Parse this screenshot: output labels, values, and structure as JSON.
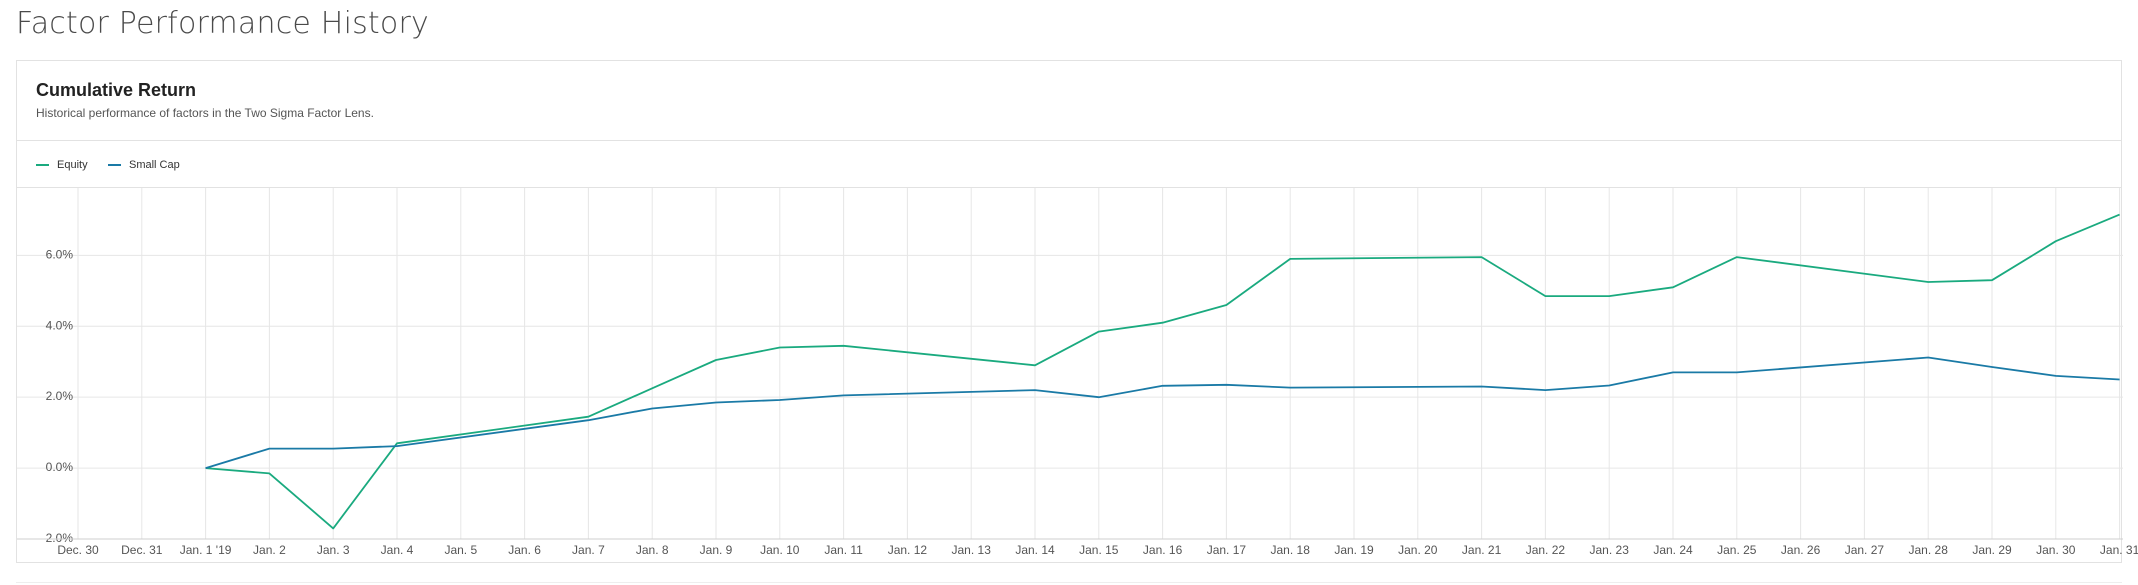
{
  "page": {
    "title": "Factor Performance History"
  },
  "card": {
    "title": "Cumulative Return",
    "subtitle": "Historical performance of factors in the Two Sigma Factor Lens."
  },
  "colors": {
    "equity": "#1aaa7f",
    "small_cap": "#1a7aa6",
    "grid": "#e6e6e6",
    "axis_text": "#555555"
  },
  "legend": [
    {
      "label": "Equity",
      "color": "#1aaa7f"
    },
    {
      "label": "Small Cap",
      "color": "#1a7aa6"
    }
  ],
  "chart_data": {
    "type": "line",
    "title": "Cumulative Return",
    "xlabel": "",
    "ylabel": "",
    "categories": [
      "Dec. 30",
      "Dec. 31",
      "Jan. 1 '19",
      "Jan. 2",
      "Jan. 3",
      "Jan. 4",
      "Jan. 5",
      "Jan. 6",
      "Jan. 7",
      "Jan. 8",
      "Jan. 9",
      "Jan. 10",
      "Jan. 11",
      "Jan. 12",
      "Jan. 13",
      "Jan. 14",
      "Jan. 15",
      "Jan. 16",
      "Jan. 17",
      "Jan. 18",
      "Jan. 19",
      "Jan. 20",
      "Jan. 21",
      "Jan. 22",
      "Jan. 23",
      "Jan. 24",
      "Jan. 25",
      "Jan. 26",
      "Jan. 27",
      "Jan. 28",
      "Jan. 29",
      "Jan. 30",
      "Jan. 31"
    ],
    "yticks": [
      -2.0,
      0.0,
      2.0,
      4.0,
      6.0
    ],
    "ytick_labels": [
      "-2.0%",
      "0.0%",
      "2.0%",
      "4.0%",
      "6.0%"
    ],
    "ylim": [
      -2.0,
      7.9
    ],
    "grid": true,
    "legend_position": "top-left",
    "series": [
      {
        "name": "Equity",
        "color": "#1aaa7f",
        "points": [
          [
            "Jan. 1 '19",
            0.0
          ],
          [
            "Jan. 2",
            -0.15
          ],
          [
            "Jan. 3",
            -1.7
          ],
          [
            "Jan. 4",
            0.7
          ],
          [
            "Jan. 7",
            1.45
          ],
          [
            "Jan. 8",
            2.25
          ],
          [
            "Jan. 9",
            3.05
          ],
          [
            "Jan. 10",
            3.4
          ],
          [
            "Jan. 11",
            3.45
          ],
          [
            "Jan. 14",
            2.9
          ],
          [
            "Jan. 15",
            3.85
          ],
          [
            "Jan. 16",
            4.1
          ],
          [
            "Jan. 17",
            4.6
          ],
          [
            "Jan. 18",
            5.9
          ],
          [
            "Jan. 21",
            5.95
          ],
          [
            "Jan. 22",
            4.85
          ],
          [
            "Jan. 23",
            4.85
          ],
          [
            "Jan. 24",
            5.1
          ],
          [
            "Jan. 25",
            5.95
          ],
          [
            "Jan. 28",
            5.25
          ],
          [
            "Jan. 29",
            5.3
          ],
          [
            "Jan. 30",
            6.4
          ],
          [
            "Jan. 31",
            7.15
          ]
        ]
      },
      {
        "name": "Small Cap",
        "color": "#1a7aa6",
        "points": [
          [
            "Jan. 1 '19",
            0.0
          ],
          [
            "Jan. 2",
            0.55
          ],
          [
            "Jan. 3",
            0.55
          ],
          [
            "Jan. 4",
            0.62
          ],
          [
            "Jan. 7",
            1.35
          ],
          [
            "Jan. 8",
            1.68
          ],
          [
            "Jan. 9",
            1.85
          ],
          [
            "Jan. 10",
            1.92
          ],
          [
            "Jan. 11",
            2.05
          ],
          [
            "Jan. 14",
            2.2
          ],
          [
            "Jan. 15",
            2.0
          ],
          [
            "Jan. 16",
            2.32
          ],
          [
            "Jan. 17",
            2.35
          ],
          [
            "Jan. 18",
            2.27
          ],
          [
            "Jan. 21",
            2.3
          ],
          [
            "Jan. 22",
            2.2
          ],
          [
            "Jan. 23",
            2.33
          ],
          [
            "Jan. 24",
            2.7
          ],
          [
            "Jan. 25",
            2.7
          ],
          [
            "Jan. 28",
            3.12
          ],
          [
            "Jan. 29",
            2.85
          ],
          [
            "Jan. 30",
            2.6
          ],
          [
            "Jan. 31",
            2.5
          ]
        ]
      }
    ]
  }
}
